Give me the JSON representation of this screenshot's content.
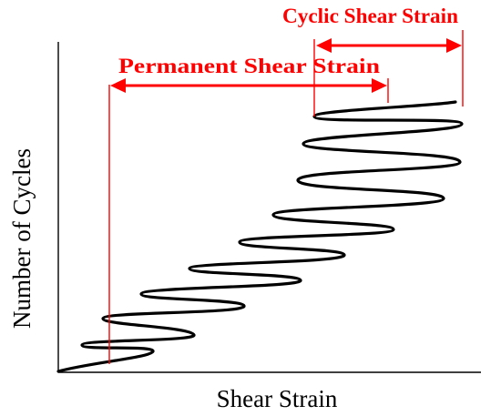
{
  "diagram": {
    "x_axis_label": "Shear Strain",
    "y_axis_label": "Number of Cycles",
    "annotations": {
      "cyclic_label": "Cyclic Shear Strain",
      "permanent_label": "Permanent Shear Strain"
    },
    "colors": {
      "curve": "#000000",
      "axes": "#000000",
      "annotation": "#ff0000"
    }
  }
}
